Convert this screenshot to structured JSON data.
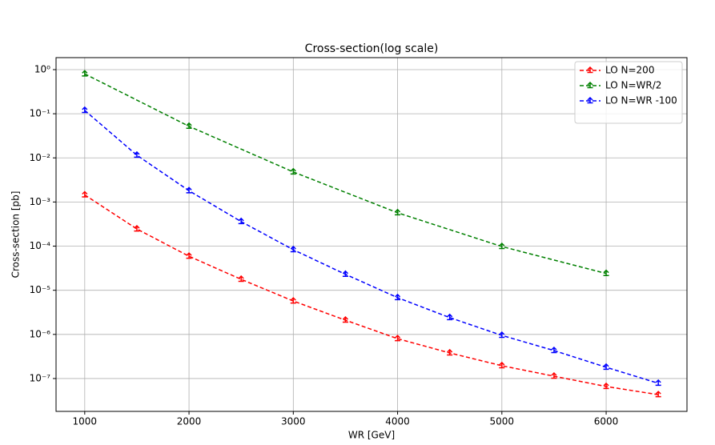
{
  "chart_data": {
    "type": "line",
    "title": "Cross-section(log scale)",
    "x_label": "WR [GeV]",
    "y_label": "Cross-section [pb]",
    "yscale": "log",
    "grid": true,
    "legend_loc": "upper right",
    "xlim": [
      725,
      6775
    ],
    "xticks": [
      1000,
      2000,
      3000,
      4000,
      5000,
      6000
    ],
    "ylim": [
      1.8e-08,
      1.87
    ],
    "yticks": [
      {
        "value": 1e-07,
        "label": "10⁻⁷"
      },
      {
        "value": 1e-06,
        "label": "10⁻⁶"
      },
      {
        "value": 1e-05,
        "label": "10⁻⁵"
      },
      {
        "value": 0.0001,
        "label": "10⁻⁴"
      },
      {
        "value": 0.001,
        "label": "10⁻³"
      },
      {
        "value": 0.01,
        "label": "10⁻²"
      },
      {
        "value": 0.1,
        "label": "10⁻¹"
      },
      {
        "value": 1,
        "label": "10⁰"
      }
    ],
    "series": [
      {
        "name": "LO N=200",
        "color": "#ff0000",
        "x": [
          1000,
          1500,
          2000,
          2500,
          3000,
          3500,
          4000,
          4500,
          5000,
          5500,
          6000,
          6500
        ],
        "values": [
          0.00145,
          0.000245,
          5.9e-05,
          1.77e-05,
          5.7e-06,
          2.1e-06,
          8e-07,
          3.8e-07,
          1.95e-07,
          1.13e-07,
          6.6e-08,
          4.3e-08
        ]
      },
      {
        "name": "LO N=WR/2",
        "color": "#008000",
        "x": [
          1000,
          2000,
          3000,
          4000,
          5000,
          6000
        ],
        "values": [
          0.8,
          0.052,
          0.0048,
          0.00057,
          9.8e-05,
          2.4e-05
        ]
      },
      {
        "name": "LO N=WR -100",
        "color": "#0000ff",
        "x": [
          1000,
          1500,
          2000,
          2500,
          3000,
          3500,
          4000,
          4500,
          5000,
          5500,
          6000,
          6500
        ],
        "values": [
          0.119,
          0.0115,
          0.0018,
          0.00036,
          8.3e-05,
          2.3e-05,
          6.8e-06,
          2.4e-06,
          9.5e-07,
          4.3e-07,
          1.8e-07,
          7.8e-08
        ]
      }
    ]
  }
}
